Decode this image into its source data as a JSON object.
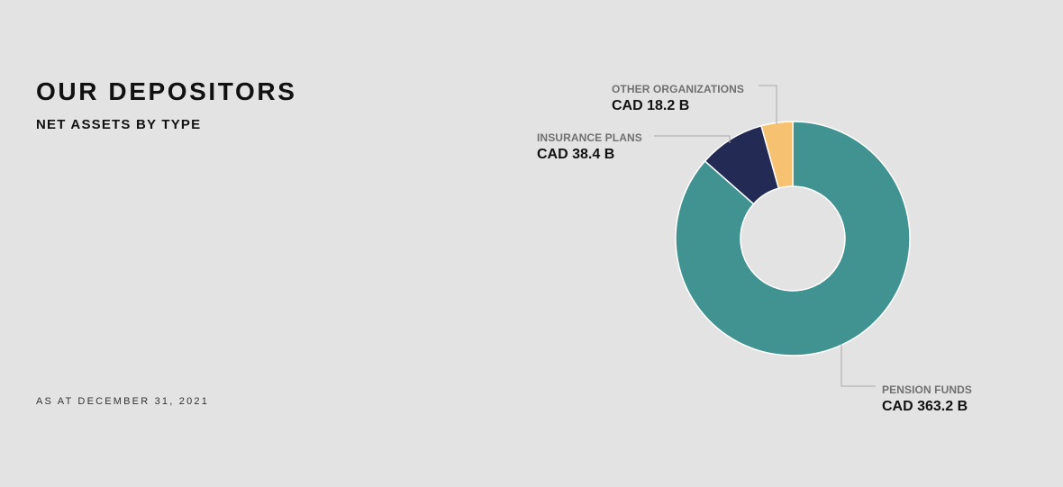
{
  "header": {
    "title": "OUR DEPOSITORS",
    "subtitle": "NET ASSETS BY TYPE"
  },
  "footer": {
    "as_at": "AS AT DECEMBER 31, 2021"
  },
  "chart_data": {
    "type": "pie",
    "style": "donut",
    "title": "OUR DEPOSITORS",
    "subtitle": "NET ASSETS BY TYPE",
    "unit": "CAD B",
    "slices": [
      {
        "label": "PENSION FUNDS",
        "value": 363.2,
        "value_label": "CAD 363.2 B",
        "color": "#409390"
      },
      {
        "label": "INSURANCE PLANS",
        "value": 38.4,
        "value_label": "CAD 38.4 B",
        "color": "#232b55"
      },
      {
        "label": "OTHER ORGANIZATIONS",
        "value": 18.2,
        "value_label": "CAD 18.2 B",
        "color": "#f6c272"
      }
    ],
    "legend": "none",
    "annotations": [
      "AS AT DECEMBER 31, 2021"
    ]
  }
}
